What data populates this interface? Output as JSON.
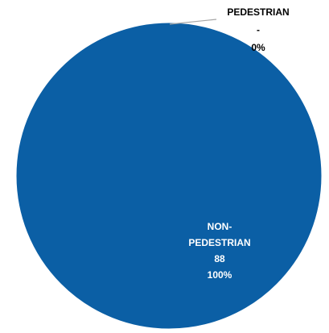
{
  "chart_data": {
    "type": "pie",
    "title": "",
    "slices": [
      {
        "name": "PEDESTRIAN",
        "value_label": "-",
        "percent_label": "0%",
        "value": 0,
        "percent": 0,
        "color": "#1f5fa6"
      },
      {
        "name": "NON-PEDESTRIAN",
        "name_lines": [
          "NON-",
          "PEDESTRIAN"
        ],
        "value_label": "88",
        "percent_label": "100%",
        "value": 88,
        "percent": 100,
        "color": "#0b5fa5"
      }
    ],
    "legend": "none",
    "colors": {
      "slice_main": "#0b5fa5",
      "leader_line": "#a6a6a6",
      "outside_label_text": "#000000",
      "inside_label_text": "#ffffff"
    }
  }
}
